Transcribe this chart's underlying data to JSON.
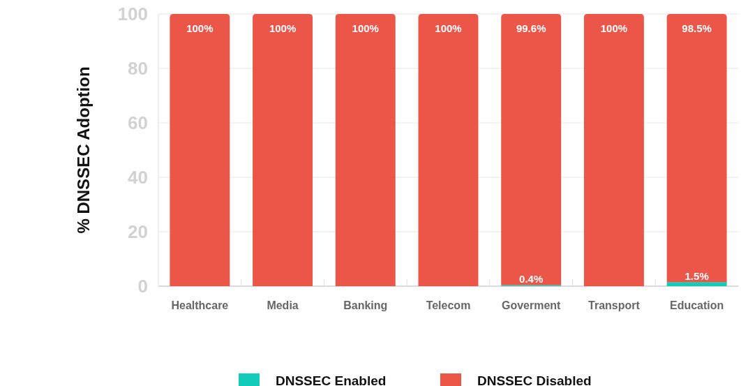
{
  "chart_data": {
    "type": "bar",
    "stacked": true,
    "ylabel": "% DNSSEC Adoption",
    "categories": [
      "Healthcare",
      "Media",
      "Banking",
      "Telecom",
      "Goverment",
      "Transport",
      "Education"
    ],
    "series": [
      {
        "name": "DNSSEC Enabled",
        "color": "#12cbb8",
        "values": [
          0,
          0,
          0,
          0,
          0.4,
          0,
          1.5
        ],
        "value_labels": [
          null,
          null,
          null,
          null,
          "0.4%",
          null,
          "1.5%"
        ]
      },
      {
        "name": "DNSSEC Disabled",
        "color": "#ec5649",
        "values": [
          100,
          100,
          100,
          100,
          99.6,
          100,
          98.5
        ],
        "value_labels": [
          "100%",
          "100%",
          "100%",
          "100%",
          "99.6%",
          "100%",
          "98.5%"
        ]
      }
    ],
    "ylim": [
      0,
      100
    ],
    "yticks": [
      0,
      20,
      40,
      60,
      80,
      100
    ],
    "grid": "y",
    "legend": "bottom"
  }
}
